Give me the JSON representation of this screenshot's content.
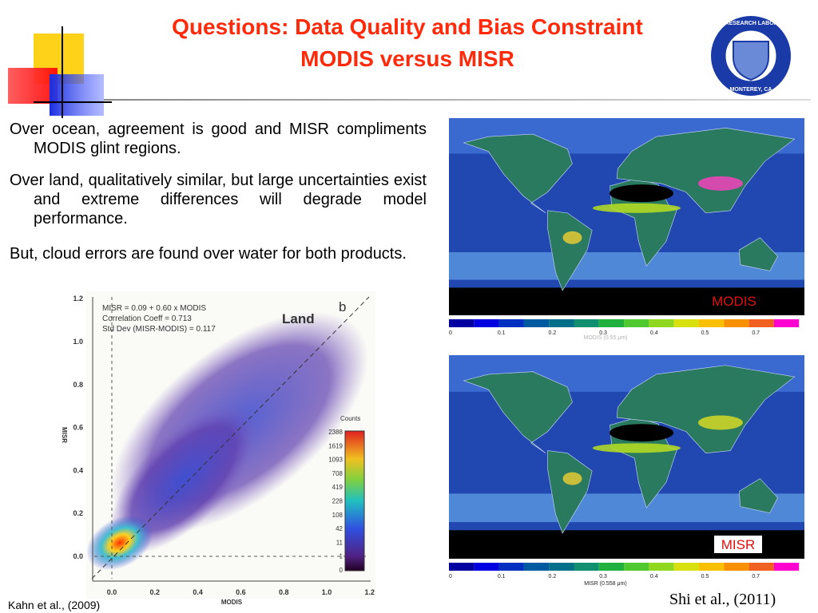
{
  "header": {
    "title": [
      "Questions: Data Quality and Bias Constraint",
      "MODIS versus MISR"
    ],
    "logo": [
      "NAVAL RESEARCH LABORATORY",
      "MONTEREY, CA"
    ]
  },
  "bullets": [
    "Over ocean, agreement is good and MISR compliments MODIS glint regions.",
    "Over land, qualitatively similar, but large uncertainties exist and extreme differences will degrade model performance.",
    "But, cloud errors are found over water for both products."
  ],
  "scatter": {
    "legend": [
      "MISR = 0.09 + 0.60 x MODIS",
      "Correlation Coeff = 0.713",
      "Std Dev (MISR-MODIS) = 0.117"
    ],
    "panel_title": "Land",
    "panel_letter": "b",
    "x_label": "MODIS",
    "y_label": "MISR",
    "x_ticks": [
      "0.0",
      "0.2",
      "0.4",
      "0.6",
      "0.8",
      "1.0",
      "1.2"
    ],
    "y_ticks": [
      "0.0",
      "0.2",
      "0.4",
      "0.6",
      "0.8",
      "1.0",
      "1.2"
    ],
    "colorbar_title": "Counts",
    "colorbar_labels": [
      "2388",
      "1619",
      "1093",
      "708",
      "419",
      "228",
      "108",
      "42",
      "11",
      "1",
      "0"
    ]
  },
  "maps": [
    {
      "label": "MODIS",
      "colorbar_ticks": [
        "0",
        "0.1",
        "0.2",
        "0.3",
        "0.4",
        "0.5",
        "0.7"
      ],
      "caption": "MODIS (0.55 μm)"
    },
    {
      "label": "MISR",
      "colorbar_ticks": [
        "0",
        "0.1",
        "0.2",
        "0.3",
        "0.4",
        "0.5",
        "0.7"
      ],
      "caption": "MISR (0.558 μm)"
    }
  ],
  "citations": [
    "Kahn et al., (2009)",
    "Shi et al., (2011)"
  ]
}
